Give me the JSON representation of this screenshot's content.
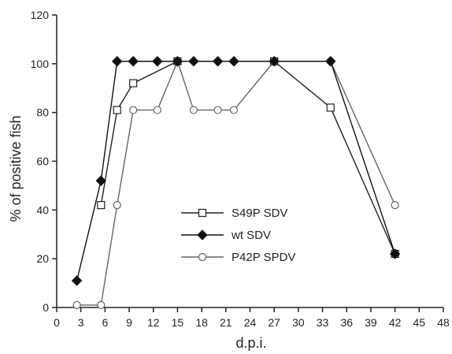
{
  "chart_data": {
    "type": "line",
    "xlabel": "d.p.i.",
    "ylabel": "% of positive fish",
    "xlim": [
      0,
      48
    ],
    "ylim": [
      0,
      120
    ],
    "x_ticks": [
      0,
      3,
      6,
      9,
      12,
      15,
      18,
      21,
      24,
      27,
      30,
      33,
      36,
      39,
      42,
      45,
      48
    ],
    "y_ticks": [
      0,
      20,
      40,
      60,
      80,
      100,
      120
    ],
    "legend_position": "center-left",
    "grid": false,
    "series": [
      {
        "name": "S49P SDV",
        "marker": "open-square",
        "color": "#222222",
        "points": [
          [
            5.5,
            42
          ],
          [
            7.5,
            81
          ],
          [
            9.5,
            92
          ],
          [
            15,
            101
          ],
          [
            27,
            101
          ],
          [
            34,
            82
          ],
          [
            42,
            22
          ]
        ]
      },
      {
        "name": "wt SDV",
        "marker": "filled-diamond",
        "color": "#111111",
        "points": [
          [
            2.5,
            11
          ],
          [
            5.5,
            52
          ],
          [
            7.5,
            101
          ],
          [
            9.5,
            101
          ],
          [
            12.5,
            101
          ],
          [
            15,
            101
          ],
          [
            17,
            101
          ],
          [
            20,
            101
          ],
          [
            22,
            101
          ],
          [
            27,
            101
          ],
          [
            34,
            101
          ],
          [
            42,
            22
          ]
        ]
      },
      {
        "name": "P42P SPDV",
        "marker": "open-circle",
        "color": "#666666",
        "points": [
          [
            2.5,
            1
          ],
          [
            5.5,
            1
          ],
          [
            7.5,
            42
          ],
          [
            9.5,
            81
          ],
          [
            12.5,
            81
          ],
          [
            15,
            101
          ],
          [
            17,
            81
          ],
          [
            20,
            81
          ],
          [
            22,
            81
          ],
          [
            27,
            101
          ],
          [
            34,
            101
          ],
          [
            42,
            42
          ]
        ]
      }
    ]
  }
}
